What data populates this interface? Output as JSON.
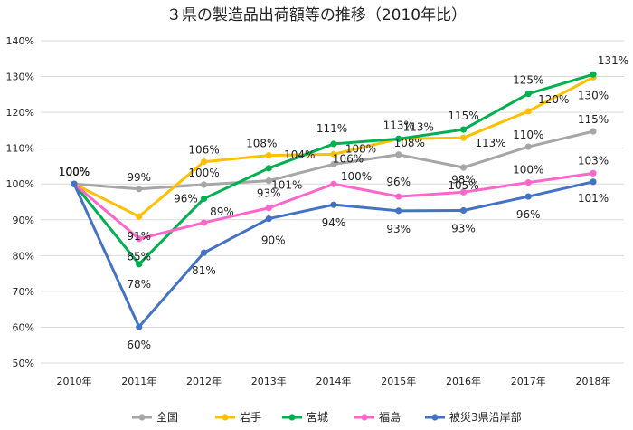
{
  "chart_data": {
    "type": "line",
    "title": "３県の製造品出荷額等の推移（2010年比）",
    "xlabel": "",
    "ylabel": "",
    "categories": [
      "2010年",
      "2011年",
      "2012年",
      "2013年",
      "2014年",
      "2015年",
      "2016年",
      "2017年",
      "2018年"
    ],
    "ylim": [
      50,
      140
    ],
    "ytick_step": 10,
    "ytick_suffix": "%",
    "grid": true,
    "legend_position": "bottom",
    "series": [
      {
        "name": "全国",
        "color": "#a6a6a6",
        "values": [
          100,
          98.6,
          99.8,
          100.9,
          105.5,
          108.2,
          104.6,
          110.4,
          114.7
        ],
        "labels": [
          "100%",
          "99%",
          "100%",
          "101%",
          "106%",
          "108%",
          "105%",
          "110%",
          "115%"
        ]
      },
      {
        "name": "岩手",
        "color": "#ffc000",
        "values": [
          100,
          90.9,
          106.2,
          108.0,
          108.3,
          112.6,
          112.9,
          120.3,
          129.8
        ],
        "labels": [
          "100%",
          "91%",
          "106%",
          "108%",
          "108%",
          "113%",
          "113%",
          "120%",
          "130%"
        ]
      },
      {
        "name": "宮城",
        "color": "#00b050",
        "values": [
          100,
          77.6,
          95.9,
          104.4,
          111.2,
          112.6,
          115.2,
          125.2,
          130.6
        ],
        "labels": [
          "100%",
          "78%",
          "96%",
          "104%",
          "111%",
          "113%",
          "115%",
          "125%",
          "131%"
        ]
      },
      {
        "name": "福島",
        "color": "#ff66cc",
        "values": [
          100,
          84.7,
          89.2,
          93.3,
          100.0,
          96.5,
          97.7,
          100.4,
          103.0
        ],
        "labels": [
          "100%",
          "85%",
          "89%",
          "93%",
          "100%",
          "96%",
          "98%",
          "100%",
          "103%"
        ]
      },
      {
        "name": "被災3県沿岸部",
        "color": "#4472c4",
        "values": [
          100,
          60.1,
          80.8,
          90.3,
          94.2,
          92.5,
          92.6,
          96.5,
          100.6
        ],
        "labels": [
          "100%",
          "60%",
          "81%",
          "90%",
          "94%",
          "93%",
          "93%",
          "96%",
          "101%"
        ]
      }
    ]
  }
}
